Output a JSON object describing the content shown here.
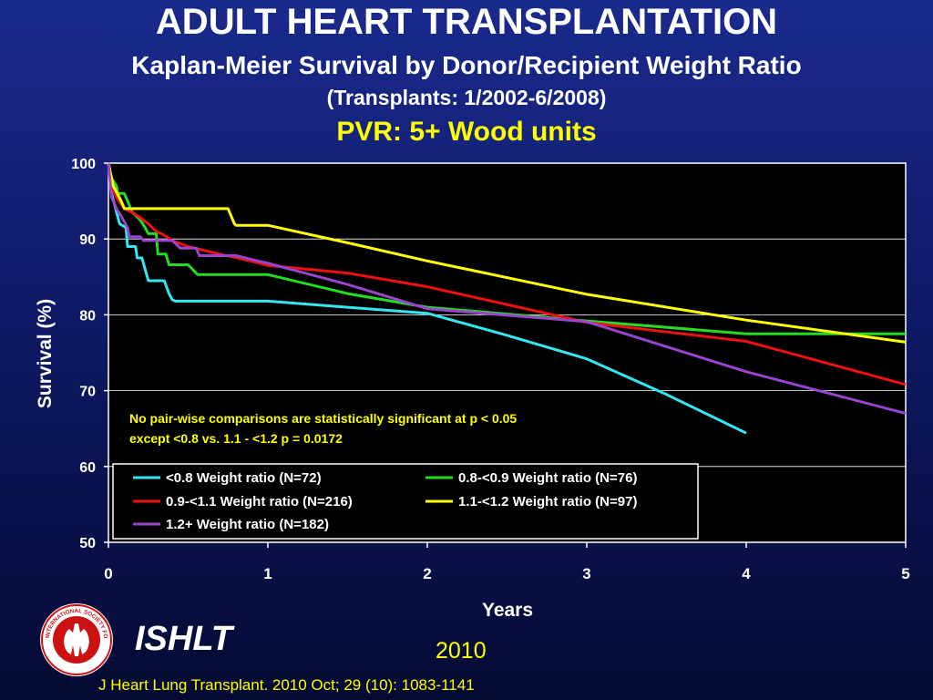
{
  "header": {
    "title": "ADULT HEART TRANSPLANTATION",
    "subtitle": "Kaplan-Meier Survival by Donor/Recipient Weight Ratio",
    "period": "(Transplants: 1/2002-6/2008)",
    "subgroup": "PVR: 5+ Wood units"
  },
  "chart_data": {
    "type": "line",
    "xlabel": "Years",
    "ylabel": "Survival (%)",
    "xlim": [
      0,
      5
    ],
    "ylim": [
      50,
      100
    ],
    "x_ticks": [
      "0",
      "1",
      "2",
      "3",
      "4",
      "5"
    ],
    "y_ticks": [
      "50",
      "60",
      "70",
      "80",
      "90",
      "100"
    ],
    "grid": "horizontal",
    "annotation": [
      "No pair-wise comparisons are statistically significant at p < 0.05",
      "except <0.8 vs. 1.1 - <1.2 p = 0.0172"
    ],
    "legend_position": "bottom-left inside plot",
    "series": [
      {
        "name": "<0.8 Weight ratio (N=72)",
        "color": "#33e6f0",
        "points": [
          [
            0,
            100
          ],
          [
            0.02,
            96
          ],
          [
            0.07,
            92
          ],
          [
            0.11,
            91.5
          ],
          [
            0.12,
            89
          ],
          [
            0.17,
            89
          ],
          [
            0.18,
            87.5
          ],
          [
            0.21,
            87.5
          ],
          [
            0.23,
            86
          ],
          [
            0.25,
            84.5
          ],
          [
            0.33,
            84.5
          ],
          [
            0.35,
            84.5
          ],
          [
            0.38,
            82.8
          ],
          [
            0.4,
            82
          ],
          [
            0.42,
            81.8
          ],
          [
            1,
            81.8
          ],
          [
            1.5,
            81
          ],
          [
            2,
            80.2
          ],
          [
            2.5,
            77.3
          ],
          [
            3,
            74.2
          ],
          [
            3.5,
            69.5
          ],
          [
            4,
            64.4
          ]
        ]
      },
      {
        "name": "0.8-<0.9 Weight ratio (N=76)",
        "color": "#22dd22",
        "points": [
          [
            0,
            100
          ],
          [
            0.02,
            98
          ],
          [
            0.05,
            97
          ],
          [
            0.06,
            96
          ],
          [
            0.1,
            96
          ],
          [
            0.13,
            94.5
          ],
          [
            0.15,
            93.5
          ],
          [
            0.2,
            92.5
          ],
          [
            0.23,
            91.5
          ],
          [
            0.25,
            90.7
          ],
          [
            0.3,
            90.7
          ],
          [
            0.31,
            88
          ],
          [
            0.36,
            88
          ],
          [
            0.38,
            86.6
          ],
          [
            0.5,
            86.6
          ],
          [
            0.56,
            85.3
          ],
          [
            1,
            85.3
          ],
          [
            1.5,
            82.8
          ],
          [
            2,
            81
          ],
          [
            3,
            79.2
          ],
          [
            4,
            77.5
          ],
          [
            5,
            77.5
          ]
        ]
      },
      {
        "name": "0.9-<1.1 Weight ratio (N=216)",
        "color": "#ee1111",
        "points": [
          [
            0,
            100
          ],
          [
            0.02,
            97
          ],
          [
            0.05,
            95.5
          ],
          [
            0.1,
            94
          ],
          [
            0.15,
            93.5
          ],
          [
            0.2,
            92.8
          ],
          [
            0.25,
            92
          ],
          [
            0.3,
            91
          ],
          [
            0.35,
            90.5
          ],
          [
            0.4,
            89.8
          ],
          [
            0.5,
            89
          ],
          [
            0.6,
            88.5
          ],
          [
            0.7,
            88
          ],
          [
            0.85,
            87.3
          ],
          [
            0.95,
            86.8
          ],
          [
            1,
            86.5
          ],
          [
            1.5,
            85.5
          ],
          [
            2,
            83.7
          ],
          [
            3,
            79
          ],
          [
            4,
            76.5
          ],
          [
            5,
            70.8
          ]
        ]
      },
      {
        "name": "1.1-<1.2 Weight ratio (N=97)",
        "color": "#ffff00",
        "points": [
          [
            0,
            100
          ],
          [
            0.03,
            97
          ],
          [
            0.08,
            95
          ],
          [
            0.1,
            94
          ],
          [
            0.75,
            94
          ],
          [
            0.79,
            92
          ],
          [
            0.8,
            91.8
          ],
          [
            1,
            91.8
          ],
          [
            1.5,
            89.5
          ],
          [
            2,
            87.1
          ],
          [
            3,
            82.7
          ],
          [
            4,
            79.3
          ],
          [
            5,
            76.4
          ]
        ]
      },
      {
        "name": "1.2+ Weight ratio (N=182)",
        "color": "#9944cc",
        "points": [
          [
            0,
            100
          ],
          [
            0.02,
            95.5
          ],
          [
            0.05,
            94
          ],
          [
            0.08,
            93
          ],
          [
            0.12,
            91.5
          ],
          [
            0.13,
            90.3
          ],
          [
            0.2,
            90.3
          ],
          [
            0.22,
            89.8
          ],
          [
            0.4,
            89.8
          ],
          [
            0.45,
            88.8
          ],
          [
            0.55,
            88.8
          ],
          [
            0.57,
            87.8
          ],
          [
            0.8,
            87.8
          ],
          [
            0.9,
            87.3
          ],
          [
            1,
            86.8
          ],
          [
            1.5,
            84
          ],
          [
            2,
            80.8
          ],
          [
            3,
            79.1
          ],
          [
            4,
            72.5
          ],
          [
            5,
            67
          ]
        ]
      }
    ]
  },
  "footer": {
    "logo_text": "INTERNATIONAL SOCIETY FOR HEART & LUNG TRANSPLANTATION",
    "org": "ISHLT",
    "year": "2010",
    "citation": "J Heart Lung Transplant. 2010 Oct; 29 (10): 1083-1141"
  }
}
